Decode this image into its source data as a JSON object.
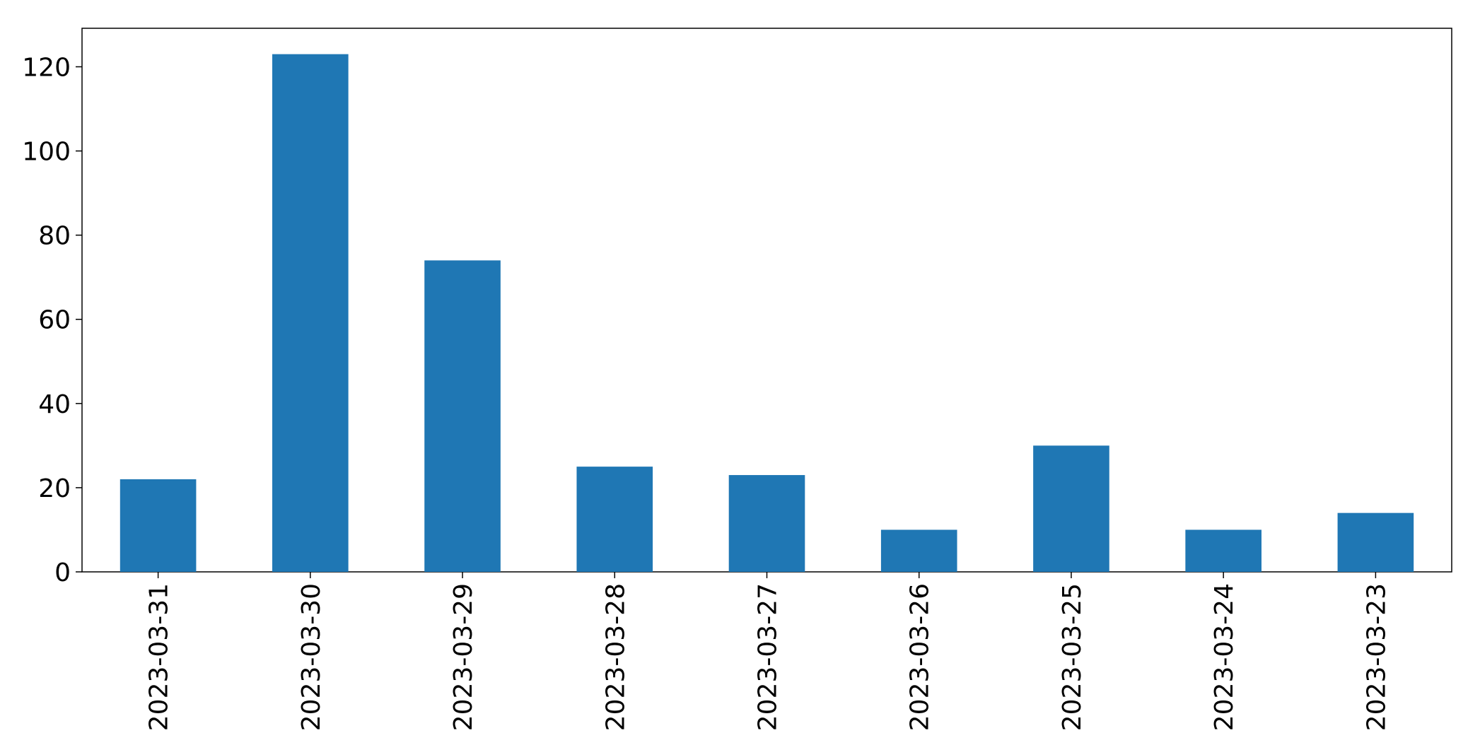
{
  "chart_data": {
    "type": "bar",
    "categories": [
      "2023-03-31",
      "2023-03-30",
      "2023-03-29",
      "2023-03-28",
      "2023-03-27",
      "2023-03-26",
      "2023-03-25",
      "2023-03-24",
      "2023-03-23"
    ],
    "values": [
      22,
      123,
      74,
      25,
      23,
      10,
      30,
      10,
      14
    ],
    "color": "#1f77b4",
    "ylim": [
      0,
      129.15
    ],
    "yticks": [
      0,
      20,
      40,
      60,
      80,
      100,
      120
    ],
    "grid": false
  }
}
